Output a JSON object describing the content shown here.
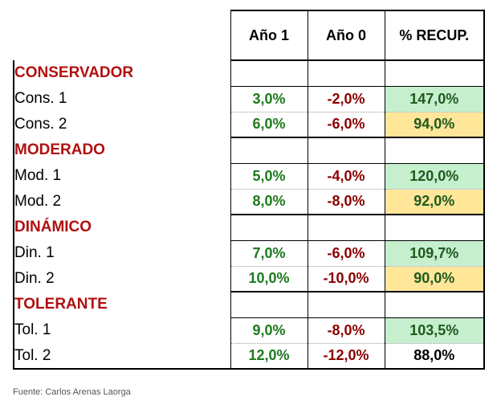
{
  "headers": {
    "year1": "Año 1",
    "year0": "Año 0",
    "recovery": "% RECUP."
  },
  "groups": [
    {
      "title": "CONSERVADOR",
      "rows": [
        {
          "label": "Cons. 1",
          "year1": "3,0%",
          "year0": "-2,0%",
          "recovery": "147,0%",
          "highlight": "green"
        },
        {
          "label": "Cons. 2",
          "year1": "6,0%",
          "year0": "-6,0%",
          "recovery": "94,0%",
          "highlight": "yellow"
        }
      ]
    },
    {
      "title": "MODERADO",
      "rows": [
        {
          "label": "Mod. 1",
          "year1": "5,0%",
          "year0": "-4,0%",
          "recovery": "120,0%",
          "highlight": "green"
        },
        {
          "label": "Mod. 2",
          "year1": "8,0%",
          "year0": "-8,0%",
          "recovery": "92,0%",
          "highlight": "yellow"
        }
      ]
    },
    {
      "title": "DINÁMICO",
      "rows": [
        {
          "label": "Din. 1",
          "year1": "7,0%",
          "year0": "-6,0%",
          "recovery": "109,7%",
          "highlight": "green"
        },
        {
          "label": "Din. 2",
          "year1": "10,0%",
          "year0": "-10,0%",
          "recovery": "90,0%",
          "highlight": "yellow"
        }
      ]
    },
    {
      "title": "TOLERANTE",
      "rows": [
        {
          "label": "Tol. 1",
          "year1": "9,0%",
          "year0": "-8,0%",
          "recovery": "103,5%",
          "highlight": "green"
        },
        {
          "label": "Tol. 2",
          "year1": "12,0%",
          "year0": "-12,0%",
          "recovery": "88,0%",
          "highlight": "none"
        }
      ]
    }
  ],
  "source": "Fuente: Carlos Arenas Laorga",
  "colors": {
    "group_title": "#b01010",
    "positive": "#1e7a1e",
    "negative": "#8b0000",
    "highlight_green": "#c6efce",
    "highlight_yellow": "#ffe699"
  }
}
